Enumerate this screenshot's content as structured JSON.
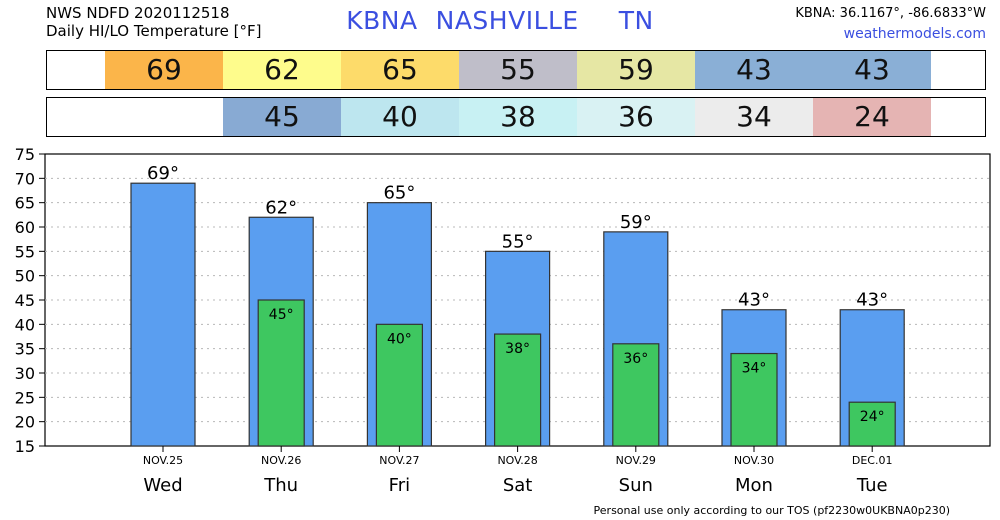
{
  "header": {
    "line1": "NWS NDFD 2020112518",
    "line2": "Daily HI/LO Temperature [°F]",
    "station": "KBNA",
    "city": "NASHVILLE",
    "state": "TN",
    "coords": "KBNA: 36.1167°, -86.6833°W",
    "site": "weathermodels.com"
  },
  "hi_strip": [
    {
      "value": "69",
      "color": "#fbb54a"
    },
    {
      "value": "62",
      "color": "#fefc8c"
    },
    {
      "value": "65",
      "color": "#fddb6a"
    },
    {
      "value": "55",
      "color": "#bfbec9"
    },
    {
      "value": "59",
      "color": "#e6e7a4"
    },
    {
      "value": "43",
      "color": "#8aafd6"
    },
    {
      "value": "43",
      "color": "#8aafd6"
    }
  ],
  "lo_strip": [
    {
      "value": "",
      "color": "#ffffff"
    },
    {
      "value": "45",
      "color": "#88aad3"
    },
    {
      "value": "40",
      "color": "#bde6ef"
    },
    {
      "value": "38",
      "color": "#c8f1f3"
    },
    {
      "value": "36",
      "color": "#d9f2f3"
    },
    {
      "value": "34",
      "color": "#ececec"
    },
    {
      "value": "24",
      "color": "#e5b4b3"
    }
  ],
  "chart_data": {
    "type": "bar",
    "categories": [
      "Wed",
      "Thu",
      "Fri",
      "Sat",
      "Sun",
      "Mon",
      "Tue"
    ],
    "dates": [
      "NOV.25",
      "NOV.26",
      "NOV.27",
      "NOV.28",
      "NOV.29",
      "NOV.30",
      "DEC.01"
    ],
    "series": [
      {
        "values": [
          69,
          62,
          65,
          55,
          59,
          43,
          43
        ],
        "labels": [
          "69°",
          "62°",
          "65°",
          "55°",
          "59°",
          "43°",
          "43°"
        ],
        "color": "#5a9ef0"
      },
      {
        "values": [
          null,
          45,
          40,
          38,
          36,
          34,
          24
        ],
        "labels": [
          "",
          "45°",
          "40°",
          "38°",
          "36°",
          "34°",
          "24°"
        ],
        "color": "#3ec760"
      }
    ],
    "ylim": [
      15,
      75
    ],
    "yticks": [
      15,
      20,
      25,
      30,
      35,
      40,
      45,
      50,
      55,
      60,
      65,
      70,
      75
    ],
    "grid": true
  },
  "footer": "Personal use only according to our TOS (pf2230w0UKBNA0p230)"
}
